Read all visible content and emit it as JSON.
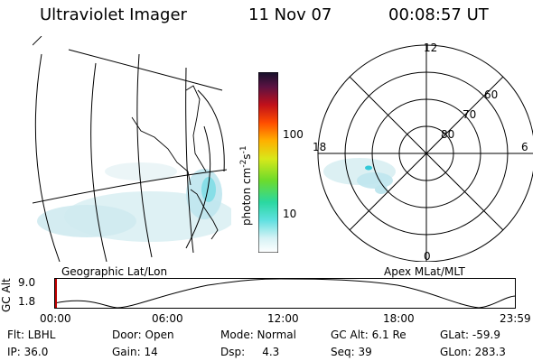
{
  "header": {
    "instrument": "Ultraviolet Imager",
    "date": "11 Nov 07",
    "time": "00:08:57 UT"
  },
  "colorbar": {
    "unit_label": "photon cm",
    "unit_sup1": "-2",
    "unit_mid": "s",
    "unit_sup2": "-1",
    "tick_100": "100",
    "tick_10": "10"
  },
  "left_map": {
    "label": "Geographic Lat/Lon"
  },
  "polar_plot": {
    "label": "Apex MLat/MLT",
    "mlt_labels": {
      "top": "12",
      "left": "18",
      "right": "6",
      "bottom": "0"
    },
    "lat_labels": [
      "60",
      "70",
      "80"
    ]
  },
  "altitude_plot": {
    "ylabel": "GC Alt",
    "ymax": "9.0",
    "ymin": "1.8",
    "x_ticks": [
      "00:00",
      "06:00",
      "12:00",
      "18:00",
      "23:59"
    ]
  },
  "info_rows": [
    [
      {
        "key": "flt",
        "text": "Flt: LBHL"
      },
      {
        "key": "door",
        "text": "Door: Open"
      },
      {
        "key": "mode",
        "text": "Mode: Normal"
      },
      {
        "key": "gcalt",
        "text": "GC Alt: 6.1 Re"
      },
      {
        "key": "glat",
        "text": "GLat: -59.9"
      }
    ],
    [
      {
        "key": "ip",
        "text": "IP: 36.0"
      },
      {
        "key": "gain",
        "text": "Gain: 14"
      },
      {
        "key": "dsp",
        "text": "Dsp:     4.3"
      },
      {
        "key": "seq",
        "text": "Seq: 39"
      },
      {
        "key": "glon",
        "text": "GLon: 283.3"
      }
    ]
  ]
}
